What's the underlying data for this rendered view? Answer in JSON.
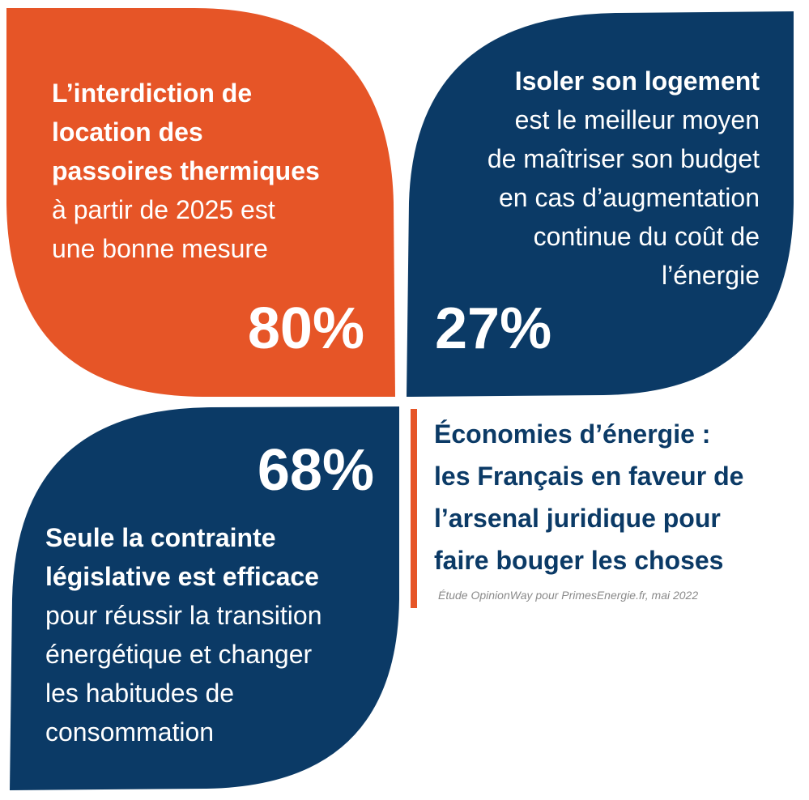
{
  "colors": {
    "orange": "#e65527",
    "navy": "#0b3a66",
    "white": "#ffffff",
    "gray": "#8a8a8a"
  },
  "petals": {
    "top_left": {
      "bold_lines": [
        "L’interdiction de",
        "location des",
        "passoires thermiques"
      ],
      "normal_lines": [
        "à partir de 2025 est",
        "une bonne mesure"
      ],
      "percent": "80%"
    },
    "top_right": {
      "bold_lines": [
        "Isoler son logement"
      ],
      "normal_lines": [
        "est le meilleur moyen",
        "de maîtriser son budget",
        "en cas d’augmentation",
        "continue du coût de",
        "l’énergie"
      ],
      "percent": "27%"
    },
    "bottom_left": {
      "percent": "68%",
      "bold_lines": [
        "Seule la contrainte",
        "législative est efficace"
      ],
      "normal_lines": [
        "pour réussir la transition",
        "énergétique et changer",
        "les habitudes de",
        "consommation"
      ]
    }
  },
  "headline": {
    "lines": [
      "Économies d’énergie :",
      "les Français en faveur de",
      "l’arsenal juridique pour",
      "faire bouger les choses"
    ]
  },
  "source": "Étude OpinionWay pour PrimesEnergie.fr, mai 2022"
}
